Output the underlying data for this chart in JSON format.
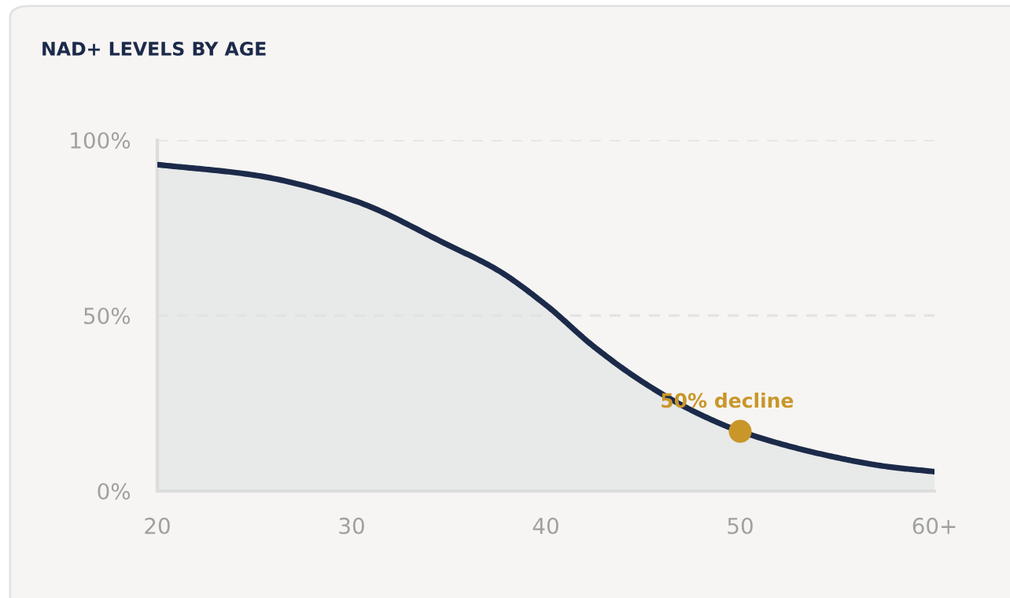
{
  "chart_data": {
    "type": "area",
    "title": "NAD+ LEVELS BY AGE",
    "series": [
      {
        "color": "#1c2a4a",
        "marker": "none",
        "x": [
          20,
          25,
          30,
          35,
          37.5,
          40,
          42.5,
          45,
          47.5,
          50,
          55,
          57.5,
          60
        ],
        "values": [
          93,
          90,
          83,
          70,
          63,
          53,
          41,
          31,
          23,
          17,
          9.5,
          7,
          5.5
        ]
      },
      {
        "type": "scatter",
        "marker": "circle",
        "color": "#c9962a",
        "x": [
          50
        ],
        "values": [
          17
        ]
      }
    ],
    "annotations": [
      {
        "text": "50% decline",
        "x": 50,
        "y": 17
      }
    ],
    "xlim": [
      20,
      60
    ],
    "xticks": [
      20,
      30,
      40,
      50,
      {
        "value": 60,
        "label": "60+"
      }
    ],
    "ylim": [
      0,
      100
    ],
    "yticks": [
      {
        "value": 0,
        "label": "0%"
      },
      {
        "value": 50,
        "label": "50%"
      },
      {
        "value": 100,
        "label": "100%"
      }
    ],
    "grid": "y",
    "line_style": "solid"
  }
}
